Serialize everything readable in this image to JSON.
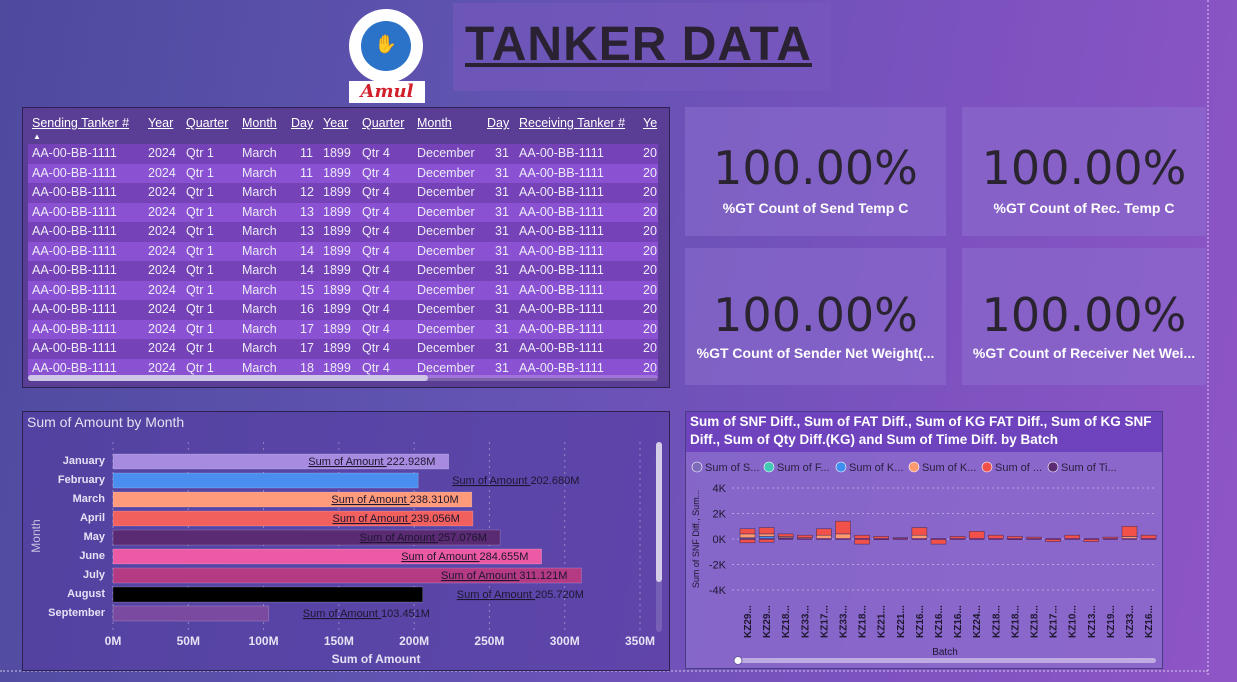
{
  "logo": {
    "brand": "Amul"
  },
  "page_title": "TANKER DATA",
  "table": {
    "columns": [
      "Sending Tanker #",
      "Year",
      "Quarter",
      "Month",
      "Day",
      "Year",
      "Quarter",
      "Month",
      "Day",
      "Receiving Tanker #",
      "Ye"
    ],
    "rows": [
      [
        "AA-00-BB-1111",
        "2024",
        "Qtr 1",
        "March",
        "11",
        "1899",
        "Qtr 4",
        "December",
        "31",
        "AA-00-BB-1111",
        "20"
      ],
      [
        "AA-00-BB-1111",
        "2024",
        "Qtr 1",
        "March",
        "11",
        "1899",
        "Qtr 4",
        "December",
        "31",
        "AA-00-BB-1111",
        "20"
      ],
      [
        "AA-00-BB-1111",
        "2024",
        "Qtr 1",
        "March",
        "12",
        "1899",
        "Qtr 4",
        "December",
        "31",
        "AA-00-BB-1111",
        "20"
      ],
      [
        "AA-00-BB-1111",
        "2024",
        "Qtr 1",
        "March",
        "13",
        "1899",
        "Qtr 4",
        "December",
        "31",
        "AA-00-BB-1111",
        "20"
      ],
      [
        "AA-00-BB-1111",
        "2024",
        "Qtr 1",
        "March",
        "13",
        "1899",
        "Qtr 4",
        "December",
        "31",
        "AA-00-BB-1111",
        "20"
      ],
      [
        "AA-00-BB-1111",
        "2024",
        "Qtr 1",
        "March",
        "14",
        "1899",
        "Qtr 4",
        "December",
        "31",
        "AA-00-BB-1111",
        "20"
      ],
      [
        "AA-00-BB-1111",
        "2024",
        "Qtr 1",
        "March",
        "14",
        "1899",
        "Qtr 4",
        "December",
        "31",
        "AA-00-BB-1111",
        "20"
      ],
      [
        "AA-00-BB-1111",
        "2024",
        "Qtr 1",
        "March",
        "15",
        "1899",
        "Qtr 4",
        "December",
        "31",
        "AA-00-BB-1111",
        "20"
      ],
      [
        "AA-00-BB-1111",
        "2024",
        "Qtr 1",
        "March",
        "16",
        "1899",
        "Qtr 4",
        "December",
        "31",
        "AA-00-BB-1111",
        "20"
      ],
      [
        "AA-00-BB-1111",
        "2024",
        "Qtr 1",
        "March",
        "17",
        "1899",
        "Qtr 4",
        "December",
        "31",
        "AA-00-BB-1111",
        "20"
      ],
      [
        "AA-00-BB-1111",
        "2024",
        "Qtr 1",
        "March",
        "17",
        "1899",
        "Qtr 4",
        "December",
        "31",
        "AA-00-BB-1111",
        "20"
      ],
      [
        "AA-00-BB-1111",
        "2024",
        "Qtr 1",
        "March",
        "18",
        "1899",
        "Qtr 4",
        "December",
        "31",
        "AA-00-BB-1111",
        "20"
      ]
    ]
  },
  "kpis": [
    {
      "value": "100.00%",
      "label": "%GT Count of Send Temp C"
    },
    {
      "value": "100.00%",
      "label": "%GT Count of Rec. Temp C"
    },
    {
      "value": "100.00%",
      "label": "%GT Count of Sender Net Weight(..."
    },
    {
      "value": "100.00%",
      "label": "%GT Count of Receiver Net Wei..."
    }
  ],
  "chart_data": [
    {
      "type": "bar",
      "orientation": "horizontal",
      "title": "Sum of Amount by Month",
      "xlabel": "Sum of Amount",
      "ylabel": "Month",
      "data_label_prefix": "Sum of Amount",
      "categories": [
        "January",
        "February",
        "March",
        "April",
        "May",
        "June",
        "July",
        "August",
        "September"
      ],
      "values": [
        222.928,
        202.68,
        238.31,
        239.056,
        257.076,
        284.655,
        311.121,
        205.72,
        103.451
      ],
      "value_labels": [
        "222.928M",
        "202.680M",
        "238.310M",
        "239.056M",
        "257.076M",
        "284.655M",
        "311.121M",
        "205.720M",
        "103.451M"
      ],
      "bar_colors": [
        "#a78be0",
        "#4a8ff0",
        "#ff9a7a",
        "#f2605e",
        "#5a2a73",
        "#ec5aa5",
        "#b33a83",
        "#000000",
        "#7a4aa0"
      ],
      "xlim": [
        0,
        350
      ],
      "xticks": [
        "0M",
        "50M",
        "100M",
        "150M",
        "200M",
        "250M",
        "300M",
        "350M"
      ],
      "grid": true
    },
    {
      "type": "bar",
      "stacked": true,
      "title": "Sum of SNF Diff., Sum of FAT Diff., Sum of KG FAT Diff., Sum of KG SNF Diff., Sum of Qty Diff.(KG) and Sum of Time Diff. by Batch",
      "xlabel": "Batch",
      "ylabel": "Sum of SNF Diff., Sum...",
      "legend_position": "top",
      "legend": [
        {
          "label": "Sum of S...",
          "color": "#7b6bb8"
        },
        {
          "label": "Sum of F...",
          "color": "#41c9b4"
        },
        {
          "label": "Sum of K...",
          "color": "#3f8ff2"
        },
        {
          "label": "Sum of K...",
          "color": "#ff9a70"
        },
        {
          "label": "Sum of ...",
          "color": "#f2514a"
        },
        {
          "label": "Sum of Ti...",
          "color": "#5b2a72"
        }
      ],
      "yticks": [
        "4K",
        "2K",
        "0K",
        "-2K",
        "-4K"
      ],
      "ylim": [
        -4000,
        4000
      ],
      "categories": [
        "KZ29...",
        "KZ29...",
        "KZ18...",
        "KZ33...",
        "KZ17...",
        "KZ33...",
        "KZ18...",
        "KZ21...",
        "KZ21...",
        "KZ16...",
        "KZ16...",
        "KZ16...",
        "KZ24...",
        "KZ18...",
        "KZ18...",
        "KZ18...",
        "KZ17...",
        "KZ10...",
        "KZ13...",
        "KZ19...",
        "KZ33...",
        "KZ16..."
      ],
      "stacks": [
        [
          -300,
          100,
          400,
          800
        ],
        [
          -250,
          200,
          400,
          900
        ],
        [
          50,
          100,
          200,
          400
        ],
        [
          0,
          0,
          100,
          300
        ],
        [
          0,
          0,
          300,
          800
        ],
        [
          0,
          0,
          400,
          1400
        ],
        [
          -400,
          0,
          0,
          300
        ],
        [
          -50,
          0,
          0,
          200
        ],
        [
          0,
          0,
          0,
          100
        ],
        [
          0,
          0,
          300,
          900
        ],
        [
          -400,
          0,
          0,
          0
        ],
        [
          0,
          0,
          0,
          200
        ],
        [
          0,
          0,
          0,
          600
        ],
        [
          0,
          0,
          0,
          300
        ],
        [
          -50,
          0,
          0,
          200
        ],
        [
          0,
          0,
          0,
          150
        ],
        [
          -200,
          0,
          0,
          0
        ],
        [
          0,
          0,
          0,
          300
        ],
        [
          -200,
          0,
          0,
          0
        ],
        [
          0,
          0,
          0,
          150
        ],
        [
          0,
          0,
          200,
          1000
        ],
        [
          0,
          0,
          0,
          300
        ]
      ],
      "stack_colors": [
        "#7b6bb8",
        "#3f8ff2",
        "#ff9a70",
        "#f2514a"
      ]
    }
  ]
}
